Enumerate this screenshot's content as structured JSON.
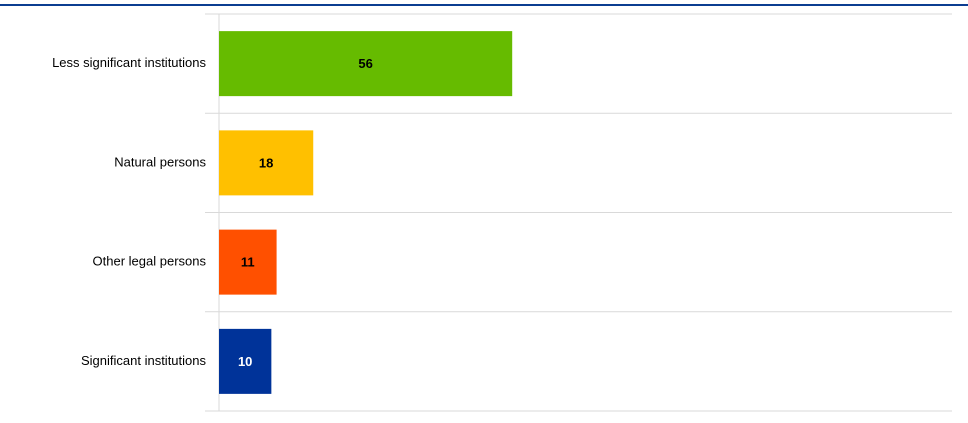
{
  "chart_data": {
    "type": "hbar",
    "categories": [
      "Less significant institutions",
      "Natural persons",
      "Other legal persons",
      "Significant institutions"
    ],
    "values": [
      56,
      18,
      11,
      10
    ],
    "colors": [
      "#66bb00",
      "#ffc000",
      "#ff5000",
      "#003399"
    ],
    "xlim": [
      0,
      140
    ],
    "grid": true
  }
}
